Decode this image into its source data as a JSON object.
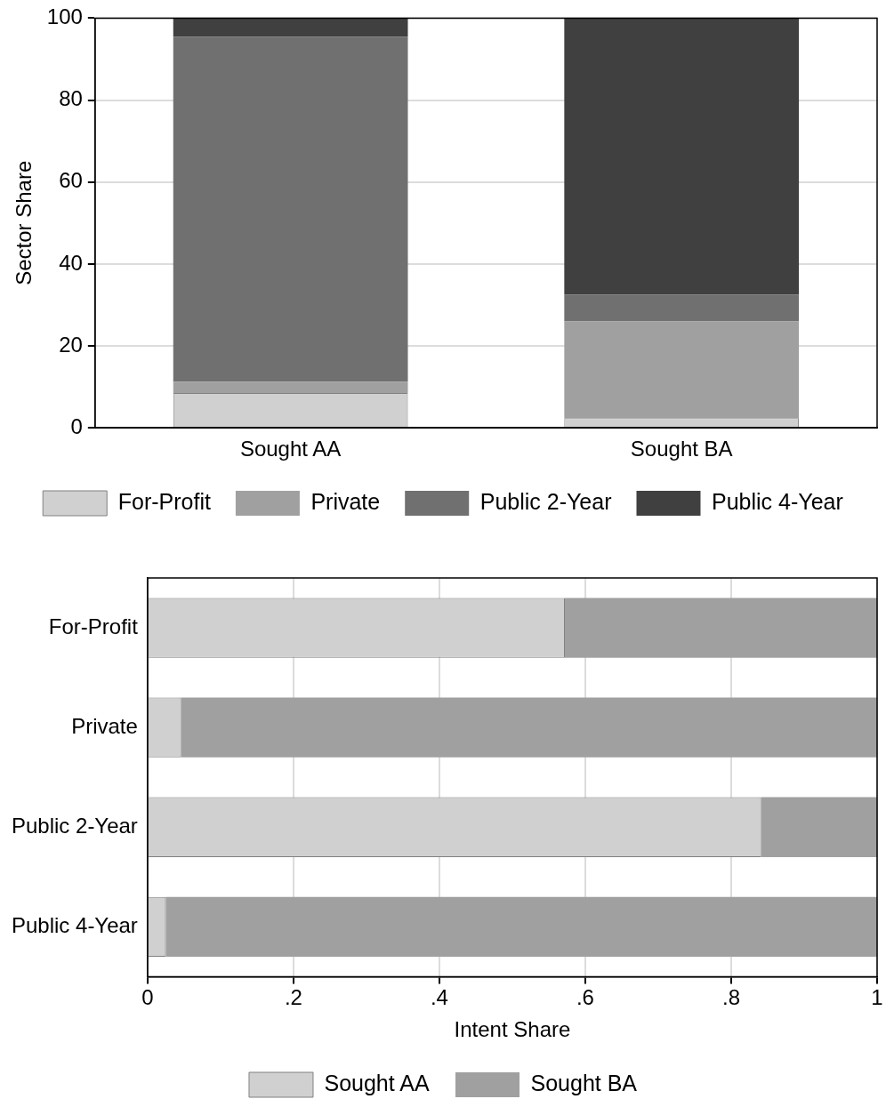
{
  "chart_data": [
    {
      "type": "bar",
      "stacked": true,
      "ylabel": "Sector Share",
      "categories": [
        "Sought AA",
        "Sought BA"
      ],
      "series": [
        {
          "name": "For-Profit",
          "color": "#d0d0d0",
          "values": [
            8.5,
            2.4
          ]
        },
        {
          "name": "Private",
          "color": "#a0a0a0",
          "values": [
            2.8,
            23.6
          ]
        },
        {
          "name": "Public 2-Year",
          "color": "#707070",
          "values": [
            84.1,
            6.5
          ]
        },
        {
          "name": "Public 4-Year",
          "color": "#404040",
          "values": [
            4.6,
            67.5
          ]
        }
      ],
      "ylim": [
        0,
        100
      ],
      "yticks": [
        0,
        20,
        40,
        60,
        80,
        100
      ],
      "grid": "y",
      "legend": "bottom"
    },
    {
      "type": "bar",
      "stacked": true,
      "orientation": "horizontal",
      "xlabel": "Intent Share",
      "categories": [
        "For-Profit",
        "Private",
        "Public 2-Year",
        "Public 4-Year"
      ],
      "series": [
        {
          "name": "Sought AA",
          "color": "#d0d0d0",
          "values": [
            0.572,
            0.046,
            0.841,
            0.025
          ]
        },
        {
          "name": "Sought BA",
          "color": "#a0a0a0",
          "values": [
            0.428,
            0.954,
            0.159,
            0.975
          ]
        }
      ],
      "xlim": [
        0,
        1
      ],
      "xticks": [
        0,
        {
          "value": 0.2,
          "label": ".2"
        },
        {
          "value": 0.4,
          "label": ".4"
        },
        {
          "value": 0.6,
          "label": ".6"
        },
        {
          "value": 0.8,
          "label": ".8"
        },
        1
      ],
      "grid": "x",
      "legend": "bottom"
    }
  ]
}
